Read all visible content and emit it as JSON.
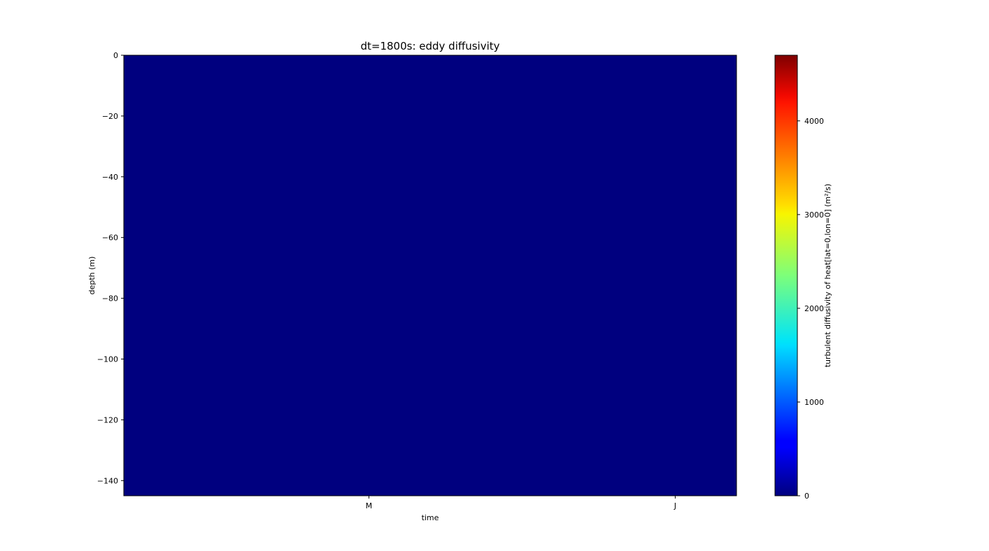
{
  "chart_data": {
    "type": "heatmap",
    "title": "dt=1800s: eddy diffusivity",
    "xlabel": "time",
    "ylabel": "depth (m)",
    "x_ticks": [
      "M",
      "J"
    ],
    "y_ticks": [
      0,
      -20,
      -40,
      -60,
      -80,
      -100,
      -120,
      -140
    ],
    "ylim": [
      -145,
      0
    ],
    "field_value": 0,
    "field_color": "#00007f",
    "colorbar": {
      "label": "turbulent diffusivity of heat[lat=0,lon=0] (m²/s)",
      "colormap": "jet",
      "range": [
        0,
        4700
      ],
      "ticks": [
        0,
        1000,
        2000,
        3000,
        4000
      ]
    }
  }
}
